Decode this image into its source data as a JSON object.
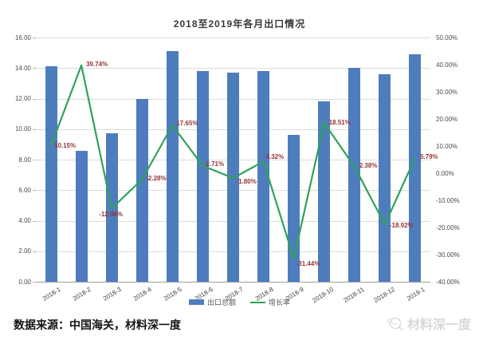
{
  "title": "2018至2019年各月出口情况",
  "chart_data": {
    "type": "combo-bar-line",
    "title": "2018至2019年各月出口情况",
    "categories": [
      "2018-1",
      "2018-2",
      "2018-3",
      "2018-4",
      "2018-5",
      "2018-6",
      "2018-7",
      "2018-8",
      "2018-9",
      "2018-10",
      "2018-11",
      "2018-12",
      "2019-1"
    ],
    "series": [
      {
        "name": "出口总额",
        "type": "bar",
        "axis": "left",
        "color": "#4E7DBE",
        "values": [
          14.1,
          8.6,
          9.7,
          12.0,
          15.1,
          13.8,
          13.7,
          13.8,
          9.6,
          11.8,
          14.0,
          13.6,
          14.9
        ]
      },
      {
        "name": "增长率",
        "type": "line",
        "axis": "right",
        "color": "#2FA25B",
        "label_color": "#943634",
        "values": [
          10.15,
          39.74,
          -12.98,
          -2.28,
          17.65,
          2.71,
          -1.8,
          4.32,
          -31.44,
          18.51,
          2.38,
          -18.92,
          5.79
        ],
        "labels": [
          "10.15%",
          "39.74%",
          "-12.98%",
          "-2.28%",
          "17.65%",
          "2.71%",
          "-1.80%",
          "4.32%",
          "-31.44%",
          "18.51%",
          "2.38%",
          "-18.92%",
          "5.79%"
        ]
      }
    ],
    "left_axis": {
      "min": 0,
      "max": 16,
      "tick_values": [
        0,
        2,
        4,
        6,
        8,
        10,
        12,
        14,
        16
      ],
      "tick_labels": [
        "0.00",
        "2.00",
        "4.00",
        "6.00",
        "8.00",
        "10.00",
        "12.00",
        "14.00",
        "16.00"
      ]
    },
    "right_axis": {
      "min": -40,
      "max": 50,
      "tick_values": [
        -40,
        -30,
        -20,
        -10,
        0,
        10,
        20,
        30,
        40,
        50
      ],
      "tick_labels": [
        "-40.00%",
        "-30.00%",
        "-20.00%",
        "-10.00%",
        "0.00%",
        "10.00%",
        "20.00%",
        "30.00%",
        "40.00%",
        "50.00%"
      ]
    },
    "grid": "horizontal",
    "legend_position": "bottom"
  },
  "legend": {
    "items": [
      {
        "label": "出口总额",
        "color": "#4E7DBE",
        "type": "bar"
      },
      {
        "label": "增长率",
        "color": "#2FA25B",
        "type": "line"
      }
    ]
  },
  "footer": {
    "source_text": "数据来源：中国海关，材料深一度"
  },
  "watermark": {
    "text": "材料深一度"
  }
}
